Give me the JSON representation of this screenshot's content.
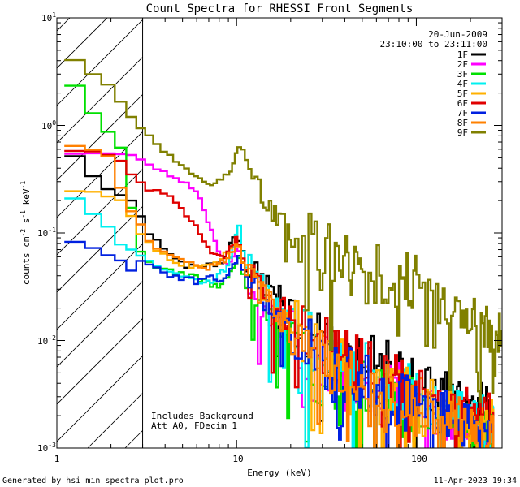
{
  "chart_data": {
    "type": "line",
    "title": "Count Spectra for RHESSI Front Segments",
    "date": "20-Jun-2009",
    "time_range": "23:10:00 to 23:11:00",
    "xlabel": "Energy (keV)",
    "ylabel_parts": [
      "counts cm",
      "-2",
      " s",
      "-1",
      " keV",
      "-1"
    ],
    "xscale": "log",
    "yscale": "log",
    "xlim": [
      1,
      300
    ],
    "ylim": [
      0.001,
      10
    ],
    "x_ticks": [
      {
        "value": 1,
        "label": "1"
      },
      {
        "value": 10,
        "label": "10"
      },
      {
        "value": 100,
        "label": "100"
      }
    ],
    "y_ticks": [
      {
        "value": 10,
        "base": "10",
        "exp": "1"
      },
      {
        "value": 1,
        "base": "10",
        "exp": "0"
      },
      {
        "value": 0.1,
        "base": "10",
        "exp": "-1"
      },
      {
        "value": 0.01,
        "base": "10",
        "exp": "-2"
      },
      {
        "value": 0.001,
        "base": "10",
        "exp": "-3"
      }
    ],
    "excluded_region_keV": [
      1,
      3
    ],
    "annotations": [
      "Includes Background",
      "Att A0, FDecim 1"
    ],
    "legend_position": "top-right",
    "series": [
      {
        "name": "1F",
        "color": "#000000",
        "points": [
          [
            1.1,
            0.5
          ],
          [
            1.3,
            0.52
          ],
          [
            1.5,
            0.38
          ],
          [
            1.8,
            0.27
          ],
          [
            2.2,
            0.23
          ],
          [
            2.6,
            0.2
          ],
          [
            2.9,
            0.15
          ],
          [
            3.2,
            0.1
          ],
          [
            3.8,
            0.08
          ],
          [
            4.5,
            0.06
          ],
          [
            5.5,
            0.048
          ],
          [
            7,
            0.05
          ],
          [
            8.5,
            0.055
          ],
          [
            9.5,
            0.09
          ],
          [
            10.2,
            0.1
          ],
          [
            10.8,
            0.065
          ],
          [
            12,
            0.045
          ],
          [
            14,
            0.035
          ],
          [
            17,
            0.026
          ],
          [
            20,
            0.018
          ],
          [
            25,
            0.013
          ],
          [
            30,
            0.01
          ],
          [
            40,
            0.007
          ],
          [
            50,
            0.006
          ],
          [
            70,
            0.005
          ],
          [
            90,
            0.004
          ],
          [
            120,
            0.0035
          ],
          [
            160,
            0.003
          ],
          [
            200,
            0.0026
          ],
          [
            270,
            0.0022
          ]
        ]
      },
      {
        "name": "2F",
        "color": "#ff00ff",
        "points": [
          [
            1.1,
            0.54
          ],
          [
            1.5,
            0.55
          ],
          [
            2,
            0.55
          ],
          [
            2.6,
            0.53
          ],
          [
            3.2,
            0.45
          ],
          [
            4,
            0.38
          ],
          [
            5,
            0.3
          ],
          [
            6,
            0.24
          ],
          [
            6.8,
            0.14
          ],
          [
            7.5,
            0.09
          ],
          [
            8.2,
            0.06
          ],
          [
            9,
            0.05
          ],
          [
            10.3,
            0.075
          ],
          [
            11,
            0.04
          ],
          [
            13,
            0.025
          ],
          [
            16,
            0.016
          ],
          [
            20,
            0.011
          ],
          [
            25,
            0.008
          ],
          [
            30,
            0.007
          ],
          [
            40,
            0.005
          ],
          [
            50,
            0.0045
          ],
          [
            70,
            0.0035
          ],
          [
            90,
            0.003
          ],
          [
            120,
            0.0022
          ],
          [
            150,
            0.0016
          ],
          [
            200,
            0.0013
          ],
          [
            270,
            0.0011
          ]
        ]
      },
      {
        "name": "3F",
        "color": "#00e000",
        "points": [
          [
            1.1,
            2.4
          ],
          [
            1.4,
            2.3
          ],
          [
            1.6,
            1.3
          ],
          [
            1.9,
            0.9
          ],
          [
            2.1,
            0.75
          ],
          [
            2.3,
            0.6
          ],
          [
            2.5,
            0.3
          ],
          [
            2.7,
            0.1
          ],
          [
            3,
            0.06
          ],
          [
            3.5,
            0.05
          ],
          [
            4.2,
            0.045
          ],
          [
            5,
            0.04
          ],
          [
            6,
            0.038
          ],
          [
            7,
            0.035
          ],
          [
            8,
            0.03
          ],
          [
            9,
            0.04
          ],
          [
            10.2,
            0.06
          ],
          [
            11,
            0.04
          ],
          [
            13,
            0.025
          ],
          [
            16,
            0.016
          ],
          [
            20,
            0.01
          ],
          [
            25,
            0.006
          ],
          [
            30,
            0.0045
          ],
          [
            40,
            0.004
          ],
          [
            50,
            0.0035
          ],
          [
            70,
            0.0028
          ],
          [
            90,
            0.0024
          ],
          [
            120,
            0.002
          ],
          [
            160,
            0.0018
          ],
          [
            200,
            0.0016
          ],
          [
            270,
            0.0014
          ]
        ]
      },
      {
        "name": "4F",
        "color": "#00f0f0",
        "points": [
          [
            1.1,
            0.24
          ],
          [
            1.4,
            0.19
          ],
          [
            1.6,
            0.15
          ],
          [
            1.9,
            0.12
          ],
          [
            2.2,
            0.08
          ],
          [
            2.6,
            0.07
          ],
          [
            3,
            0.06
          ],
          [
            3.6,
            0.05
          ],
          [
            4.3,
            0.045
          ],
          [
            5,
            0.04
          ],
          [
            6,
            0.036
          ],
          [
            7,
            0.035
          ],
          [
            8,
            0.04
          ],
          [
            9,
            0.05
          ],
          [
            10.3,
            0.13
          ],
          [
            11,
            0.06
          ],
          [
            13,
            0.035
          ],
          [
            16,
            0.024
          ],
          [
            20,
            0.016
          ],
          [
            25,
            0.011
          ],
          [
            30,
            0.008
          ],
          [
            40,
            0.006
          ],
          [
            50,
            0.005
          ],
          [
            70,
            0.004
          ],
          [
            90,
            0.0034
          ],
          [
            120,
            0.0028
          ],
          [
            160,
            0.0024
          ],
          [
            200,
            0.0021
          ],
          [
            270,
            0.0018
          ]
        ]
      },
      {
        "name": "5F",
        "color": "#ffb000",
        "points": [
          [
            1.1,
            0.24
          ],
          [
            1.5,
            0.25
          ],
          [
            1.9,
            0.22
          ],
          [
            2.3,
            0.2
          ],
          [
            2.7,
            0.13
          ],
          [
            3,
            0.09
          ],
          [
            3.5,
            0.07
          ],
          [
            4.2,
            0.06
          ],
          [
            5,
            0.052
          ],
          [
            6,
            0.05
          ],
          [
            7,
            0.048
          ],
          [
            8.5,
            0.06
          ],
          [
            10.2,
            0.09
          ],
          [
            11,
            0.05
          ],
          [
            13,
            0.03
          ],
          [
            16,
            0.02
          ],
          [
            20,
            0.014
          ],
          [
            25,
            0.01
          ],
          [
            30,
            0.0075
          ],
          [
            40,
            0.0055
          ],
          [
            50,
            0.0045
          ],
          [
            70,
            0.0037
          ],
          [
            90,
            0.0031
          ],
          [
            120,
            0.0026
          ],
          [
            160,
            0.0022
          ],
          [
            200,
            0.0019
          ],
          [
            270,
            0.0017
          ]
        ]
      },
      {
        "name": "6F",
        "color": "#e00000",
        "points": [
          [
            1.1,
            0.55
          ],
          [
            1.4,
            0.6
          ],
          [
            1.8,
            0.55
          ],
          [
            2.2,
            0.5
          ],
          [
            2.6,
            0.35
          ],
          [
            2.9,
            0.3
          ],
          [
            3.2,
            0.26
          ],
          [
            3.8,
            0.24
          ],
          [
            4.5,
            0.2
          ],
          [
            5.2,
            0.15
          ],
          [
            6,
            0.11
          ],
          [
            6.8,
            0.08
          ],
          [
            7.5,
            0.06
          ],
          [
            8.5,
            0.06
          ],
          [
            10,
            0.09
          ],
          [
            10.8,
            0.06
          ],
          [
            12,
            0.04
          ],
          [
            14,
            0.03
          ],
          [
            17,
            0.022
          ],
          [
            20,
            0.016
          ],
          [
            25,
            0.012
          ],
          [
            30,
            0.009
          ],
          [
            40,
            0.007
          ],
          [
            50,
            0.0055
          ],
          [
            70,
            0.0045
          ],
          [
            90,
            0.0038
          ],
          [
            120,
            0.003
          ],
          [
            160,
            0.0025
          ],
          [
            200,
            0.0022
          ],
          [
            270,
            0.0019
          ]
        ]
      },
      {
        "name": "7F",
        "color": "#0020e0",
        "points": [
          [
            1.1,
            0.09
          ],
          [
            1.4,
            0.078
          ],
          [
            1.7,
            0.07
          ],
          [
            2,
            0.06
          ],
          [
            2.3,
            0.055
          ],
          [
            2.5,
            0.04
          ],
          [
            2.8,
            0.055
          ],
          [
            3.2,
            0.055
          ],
          [
            3.6,
            0.045
          ],
          [
            4,
            0.04
          ],
          [
            4.5,
            0.04
          ],
          [
            5.2,
            0.038
          ],
          [
            6,
            0.035
          ],
          [
            7,
            0.04
          ],
          [
            8,
            0.035
          ],
          [
            9,
            0.04
          ],
          [
            10.3,
            0.06
          ],
          [
            11,
            0.045
          ],
          [
            13,
            0.03
          ],
          [
            16,
            0.02
          ],
          [
            20,
            0.013
          ],
          [
            25,
            0.009
          ],
          [
            30,
            0.0065
          ],
          [
            40,
            0.005
          ],
          [
            50,
            0.004
          ],
          [
            70,
            0.0033
          ],
          [
            90,
            0.0028
          ],
          [
            120,
            0.0023
          ],
          [
            160,
            0.002
          ],
          [
            200,
            0.0017
          ],
          [
            270,
            0.0015
          ]
        ]
      },
      {
        "name": "8F",
        "color": "#ff8000",
        "points": [
          [
            1.1,
            0.68
          ],
          [
            1.4,
            0.62
          ],
          [
            1.7,
            0.58
          ],
          [
            2,
            0.5
          ],
          [
            2.2,
            0.3
          ],
          [
            2.5,
            0.17
          ],
          [
            2.8,
            0.14
          ],
          [
            3.2,
            0.09
          ],
          [
            3.6,
            0.075
          ],
          [
            4.2,
            0.065
          ],
          [
            5,
            0.055
          ],
          [
            6,
            0.05
          ],
          [
            7,
            0.048
          ],
          [
            8,
            0.05
          ],
          [
            9,
            0.06
          ],
          [
            10.2,
            0.08
          ],
          [
            11,
            0.05
          ],
          [
            13,
            0.03
          ],
          [
            16,
            0.02
          ],
          [
            20,
            0.013
          ],
          [
            25,
            0.009
          ],
          [
            30,
            0.0065
          ],
          [
            40,
            0.005
          ],
          [
            50,
            0.004
          ],
          [
            70,
            0.0032
          ],
          [
            90,
            0.0027
          ],
          [
            120,
            0.0022
          ],
          [
            160,
            0.0019
          ],
          [
            200,
            0.0016
          ],
          [
            270,
            0.0014
          ]
        ]
      },
      {
        "name": "9F",
        "color": "#808000",
        "points": [
          [
            1.1,
            4.3
          ],
          [
            1.3,
            4
          ],
          [
            1.5,
            3.2
          ],
          [
            1.7,
            2.8
          ],
          [
            2,
            2.3
          ],
          [
            2.3,
            1.6
          ],
          [
            2.6,
            1.2
          ],
          [
            3,
            0.9
          ],
          [
            3.5,
            0.7
          ],
          [
            4,
            0.55
          ],
          [
            4.6,
            0.45
          ],
          [
            5.3,
            0.38
          ],
          [
            6,
            0.33
          ],
          [
            6.8,
            0.29
          ],
          [
            7.5,
            0.3
          ],
          [
            8.5,
            0.33
          ],
          [
            9.4,
            0.36
          ],
          [
            10,
            0.55
          ],
          [
            10.4,
            0.68
          ],
          [
            10.9,
            0.55
          ],
          [
            11.5,
            0.45
          ],
          [
            12.5,
            0.32
          ],
          [
            14,
            0.22
          ],
          [
            16,
            0.16
          ],
          [
            18,
            0.12
          ],
          [
            21,
            0.1
          ],
          [
            25,
            0.085
          ],
          [
            30,
            0.07
          ],
          [
            35,
            0.06
          ],
          [
            40,
            0.052
          ],
          [
            50,
            0.045
          ],
          [
            60,
            0.042
          ],
          [
            70,
            0.04
          ],
          [
            80,
            0.038
          ],
          [
            90,
            0.035
          ],
          [
            100,
            0.032
          ],
          [
            120,
            0.026
          ],
          [
            140,
            0.022
          ],
          [
            170,
            0.019
          ],
          [
            200,
            0.017
          ],
          [
            240,
            0.014
          ],
          [
            270,
            0.012
          ],
          [
            300,
            0.011
          ]
        ]
      }
    ]
  },
  "footer": {
    "left": "Generated by hsi_min_spectra_plot.pro",
    "right": "11-Apr-2023 19:34"
  }
}
